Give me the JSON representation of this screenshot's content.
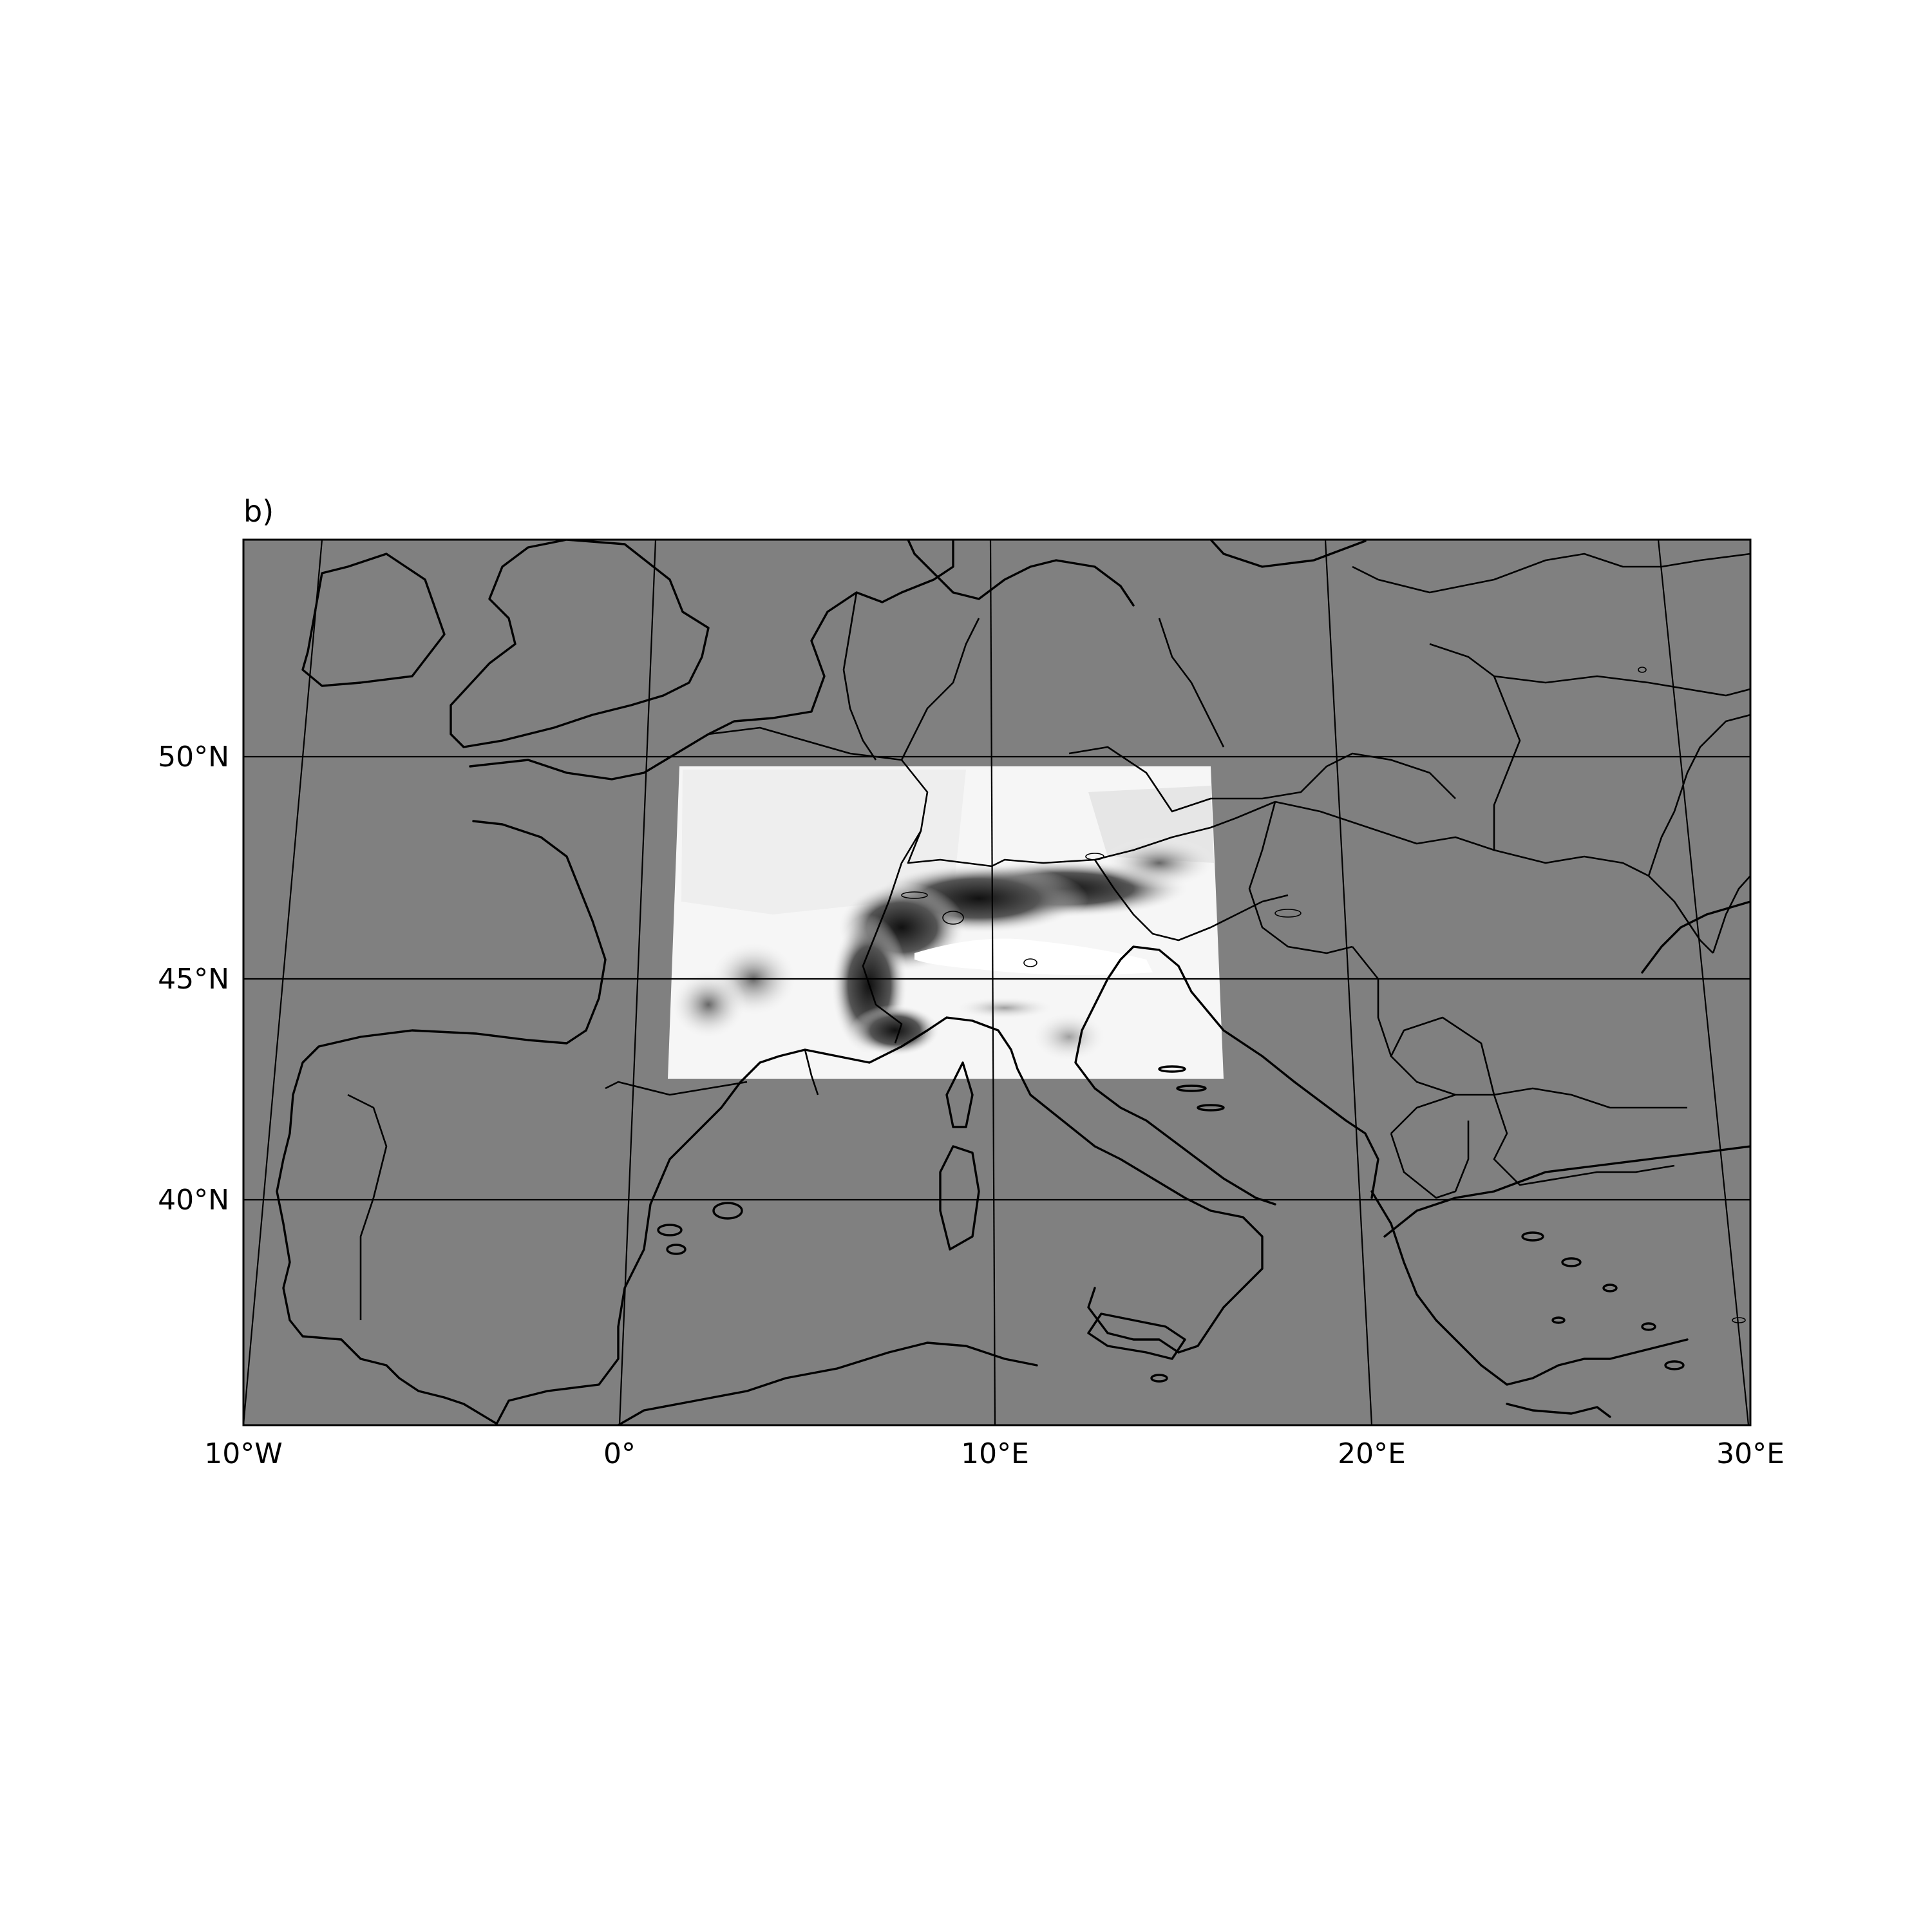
{
  "panel_label": "b)",
  "map": {
    "projection": "conic",
    "extent_lon": [
      -10,
      30
    ],
    "extent_lat": [
      35,
      55
    ],
    "ocean_color": "#808080",
    "land_color": "#808080",
    "coastline_color": "#000000",
    "gridlines": "on",
    "highlighted_region": "Alpine domain",
    "highlight_colormap": "grayscale topography"
  },
  "axes": {
    "x_ticks": [
      {
        "lon": -10,
        "label": "10°W"
      },
      {
        "lon": 0,
        "label": "0°"
      },
      {
        "lon": 10,
        "label": "10°E"
      },
      {
        "lon": 20,
        "label": "20°E"
      },
      {
        "lon": 30,
        "label": "30°E"
      }
    ],
    "y_ticks": [
      {
        "lat": 40,
        "label": "40°N"
      },
      {
        "lat": 45,
        "label": "45°N"
      },
      {
        "lat": 50,
        "label": "50°N"
      }
    ]
  }
}
